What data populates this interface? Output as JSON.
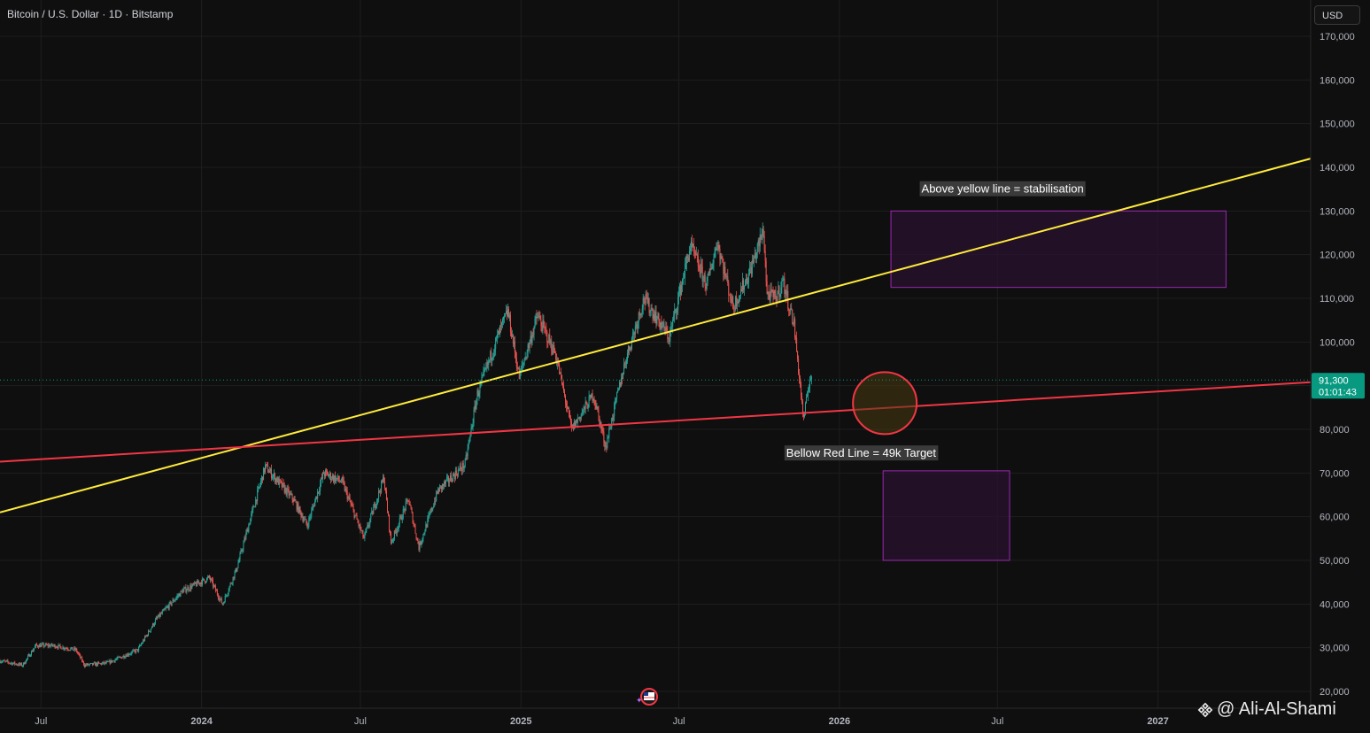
{
  "header": {
    "title": "Bitcoin / U.S. Dollar · 1D · Bitstamp",
    "currency": "USD"
  },
  "watermark": {
    "text": "@ Ali-Al-Shami",
    "icon": "binance-diamond-icon"
  },
  "colors": {
    "background": "#0f0f0f",
    "grid": "#1e1e1e",
    "up": "#26a69a",
    "down": "#ef5350",
    "yellow_line": "#ffeb3b",
    "red_line": "#f23645",
    "box_fill": "#2a1230",
    "box_border": "#9c27b0",
    "price_label": "#089981"
  },
  "chart_data": {
    "type": "candlestick",
    "title": "Bitcoin / U.S. Dollar · 1D · Bitstamp",
    "y_axis": {
      "range": [
        20000,
        170000
      ],
      "ticks": [
        {
          "value": 170000,
          "label": "170,000"
        },
        {
          "value": 160000,
          "label": "160,000"
        },
        {
          "value": 150000,
          "label": "150,000"
        },
        {
          "value": 140000,
          "label": "140,000"
        },
        {
          "value": 130000,
          "label": "130,000"
        },
        {
          "value": 120000,
          "label": "120,000"
        },
        {
          "value": 110000,
          "label": "110,000"
        },
        {
          "value": 100000,
          "label": "100,000"
        },
        {
          "value": 90000,
          "label": "90,000"
        },
        {
          "value": 80000,
          "label": "80,000"
        },
        {
          "value": 70000,
          "label": "70,000"
        },
        {
          "value": 60000,
          "label": "60,000"
        },
        {
          "value": 50000,
          "label": "50,000"
        },
        {
          "value": 40000,
          "label": "40,000"
        },
        {
          "value": 30000,
          "label": "30,000"
        },
        {
          "value": 20000,
          "label": "20,000"
        }
      ]
    },
    "x_axis": {
      "range": [
        "2023-05-15",
        "2027-06-25"
      ],
      "ticks": [
        {
          "date": "2023-07-01",
          "label": "Jul"
        },
        {
          "date": "2024-01-01",
          "label": "2024"
        },
        {
          "date": "2024-07-01",
          "label": "Jul"
        },
        {
          "date": "2025-01-01",
          "label": "2025"
        },
        {
          "date": "2025-07-01",
          "label": "Jul"
        },
        {
          "date": "2026-01-01",
          "label": "2026"
        },
        {
          "date": "2026-07-01",
          "label": "Jul"
        },
        {
          "date": "2027-01-01",
          "label": "2027"
        }
      ]
    },
    "grid": true,
    "price_path": [
      [
        "2023-05-15",
        27000
      ],
      [
        "2023-06-10",
        26000
      ],
      [
        "2023-06-25",
        30500
      ],
      [
        "2023-07-15",
        30500
      ],
      [
        "2023-08-10",
        29500
      ],
      [
        "2023-08-20",
        26000
      ],
      [
        "2023-09-15",
        26500
      ],
      [
        "2023-10-20",
        29500
      ],
      [
        "2023-11-10",
        36500
      ],
      [
        "2023-12-10",
        43000
      ],
      [
        "2024-01-10",
        46000
      ],
      [
        "2024-01-25",
        40000
      ],
      [
        "2024-02-10",
        48000
      ],
      [
        "2024-02-28",
        61000
      ],
      [
        "2024-03-14",
        71500
      ],
      [
        "2024-04-15",
        64000
      ],
      [
        "2024-05-01",
        58000
      ],
      [
        "2024-05-20",
        70000
      ],
      [
        "2024-06-10",
        68000
      ],
      [
        "2024-07-05",
        55000
      ],
      [
        "2024-07-28",
        69000
      ],
      [
        "2024-08-05",
        54000
      ],
      [
        "2024-08-25",
        64000
      ],
      [
        "2024-09-06",
        53000
      ],
      [
        "2024-09-28",
        66000
      ],
      [
        "2024-10-29",
        72000
      ],
      [
        "2024-11-12",
        88000
      ],
      [
        "2024-12-05",
        101000
      ],
      [
        "2024-12-17",
        107000
      ],
      [
        "2024-12-30",
        92000
      ],
      [
        "2025-01-20",
        106000
      ],
      [
        "2025-02-10",
        97000
      ],
      [
        "2025-02-28",
        80000
      ],
      [
        "2025-03-25",
        88000
      ],
      [
        "2025-04-08",
        76000
      ],
      [
        "2025-05-01",
        96000
      ],
      [
        "2025-05-22",
        110000
      ],
      [
        "2025-06-20",
        101000
      ],
      [
        "2025-07-14",
        122000
      ],
      [
        "2025-08-02",
        113000
      ],
      [
        "2025-08-14",
        123000
      ],
      [
        "2025-09-01",
        108000
      ],
      [
        "2025-09-20",
        116000
      ],
      [
        "2025-10-06",
        125500
      ],
      [
        "2025-10-10",
        111000
      ],
      [
        "2025-10-20",
        110000
      ],
      [
        "2025-10-28",
        114000
      ],
      [
        "2025-11-10",
        104000
      ],
      [
        "2025-11-21",
        82000
      ],
      [
        "2025-11-28",
        92000
      ],
      [
        "2025-12-01",
        91300
      ]
    ],
    "last_price": {
      "value": 91300,
      "label": "91,300",
      "countdown": "01:01:43"
    },
    "trendlines": [
      {
        "name": "Yellow trendline",
        "from": [
          "2023-05-15",
          61000
        ],
        "to": [
          "2027-06-25",
          142000
        ]
      },
      {
        "name": "Red trendline",
        "from": [
          "2023-05-15",
          72600
        ],
        "to": [
          "2027-06-25",
          90800
        ]
      }
    ],
    "zones": [
      {
        "from": [
          "2026-03-01",
          130000
        ],
        "to": [
          "2027-03-20",
          112500
        ]
      },
      {
        "from": [
          "2026-02-20",
          70500
        ],
        "to": [
          "2026-07-15",
          50000
        ]
      }
    ],
    "circle": {
      "center": [
        "2026-02-22",
        86000
      ]
    },
    "annotations": [
      {
        "text": "Above yellow line = stabilisation",
        "at": [
          "2026-04-05",
          135000
        ]
      },
      {
        "text": "Bellow Red Line = 49k Target",
        "at": [
          "2025-11-01",
          74500
        ]
      }
    ]
  }
}
